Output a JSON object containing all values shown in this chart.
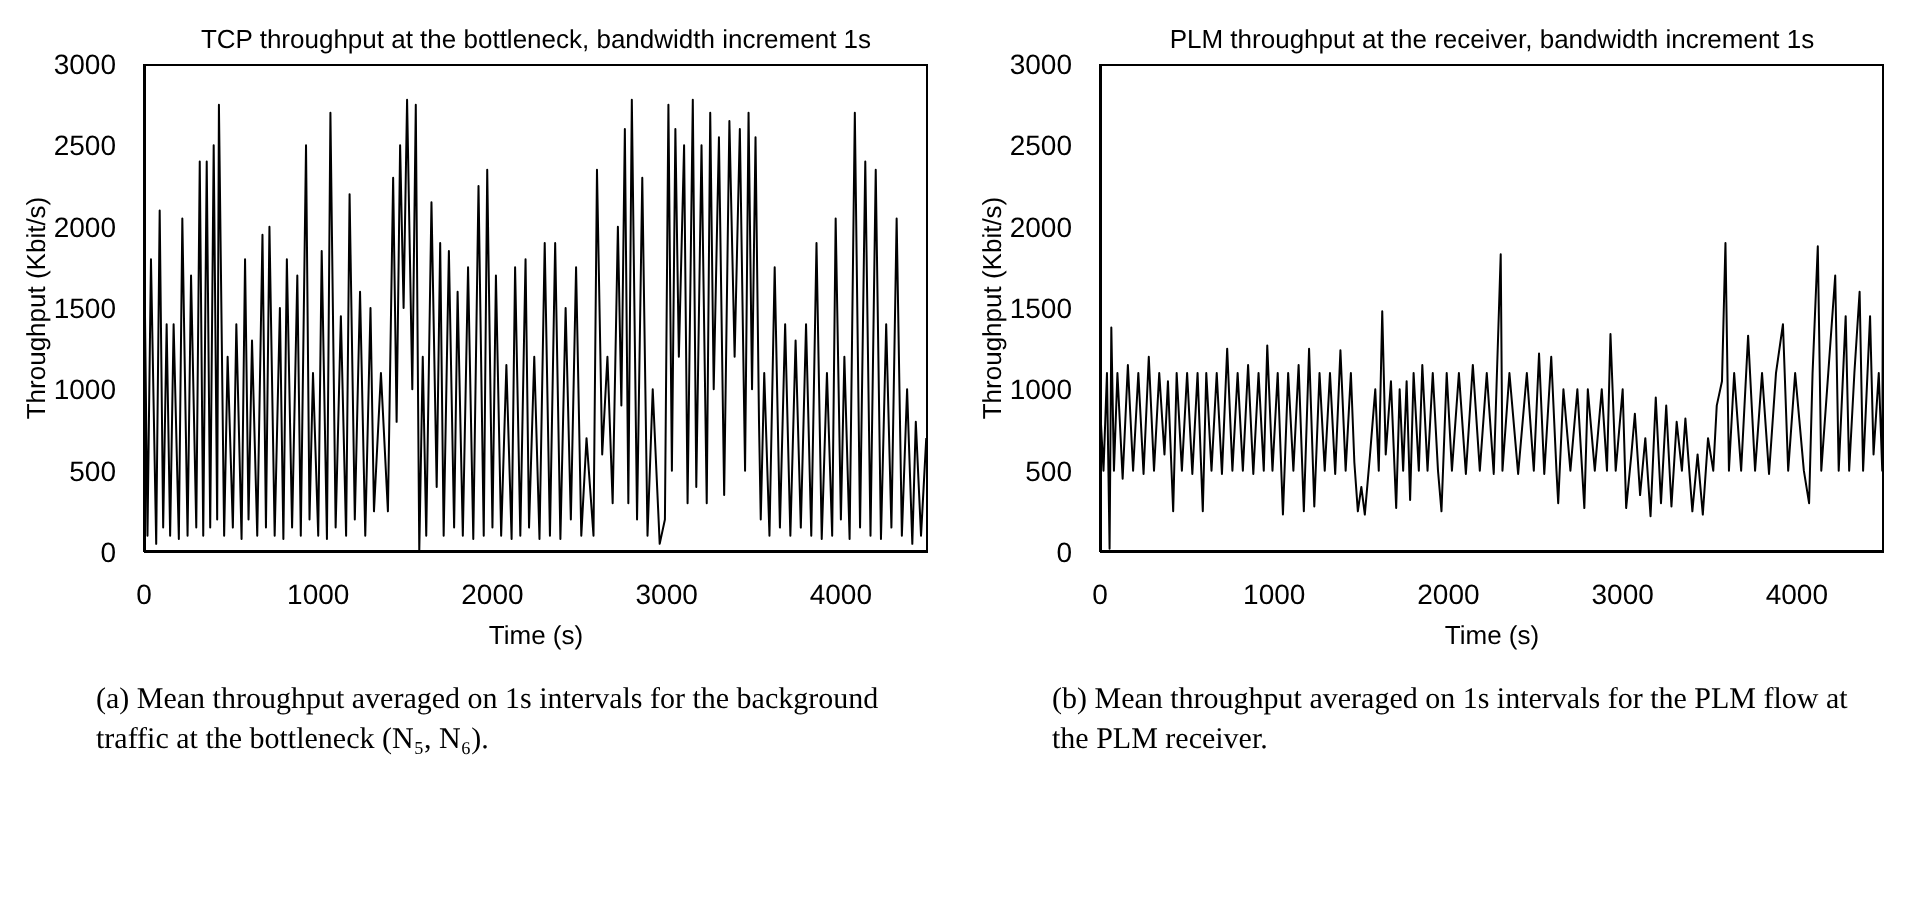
{
  "chart_data": [
    {
      "type": "line",
      "title": "TCP throughput at the bottleneck, bandwidth increment 1s",
      "xlabel": "Time (s)",
      "ylabel": "Throughput (Kbit/s)",
      "xlim": [
        0,
        4500
      ],
      "xticks": [
        0,
        1000,
        2000,
        3000,
        4000
      ],
      "ylim": [
        0,
        3000
      ],
      "yticks": [
        0,
        500,
        1000,
        1500,
        2000,
        2500,
        3000
      ],
      "marker": "none",
      "line_style": "solid",
      "annotations": [
        "(a) Mean throughput averaged on 1s intervals for the background traffic at the bottleneck (N₅, N₆)."
      ],
      "x": [
        0,
        20,
        40,
        70,
        90,
        110,
        130,
        150,
        170,
        200,
        220,
        250,
        270,
        300,
        320,
        340,
        360,
        380,
        400,
        420,
        430,
        460,
        480,
        510,
        530,
        560,
        580,
        600,
        620,
        650,
        680,
        700,
        720,
        750,
        780,
        800,
        820,
        850,
        880,
        900,
        930,
        950,
        970,
        1000,
        1020,
        1050,
        1070,
        1100,
        1130,
        1160,
        1180,
        1210,
        1240,
        1270,
        1300,
        1320,
        1360,
        1400,
        1430,
        1450,
        1470,
        1490,
        1510,
        1540,
        1560,
        1580,
        1600,
        1620,
        1650,
        1680,
        1700,
        1720,
        1750,
        1780,
        1800,
        1830,
        1860,
        1890,
        1920,
        1950,
        1970,
        2000,
        2020,
        2050,
        2080,
        2110,
        2130,
        2160,
        2190,
        2210,
        2240,
        2270,
        2300,
        2330,
        2360,
        2390,
        2420,
        2450,
        2480,
        2510,
        2540,
        2580,
        2600,
        2630,
        2660,
        2690,
        2720,
        2740,
        2760,
        2780,
        2800,
        2830,
        2860,
        2890,
        2920,
        2960,
        2990,
        3010,
        3030,
        3050,
        3070,
        3100,
        3120,
        3150,
        3170,
        3200,
        3230,
        3250,
        3270,
        3300,
        3330,
        3360,
        3390,
        3420,
        3450,
        3470,
        3490,
        3510,
        3530,
        3540,
        3560,
        3590,
        3620,
        3650,
        3680,
        3710,
        3740,
        3770,
        3800,
        3830,
        3860,
        3890,
        3920,
        3950,
        3970,
        4000,
        4020,
        4050,
        4080,
        4110,
        4140,
        4170,
        4200,
        4230,
        4260,
        4290,
        4320,
        4350,
        4380,
        4410,
        4430,
        4460,
        4490
      ],
      "series": [
        {
          "color": "#000000",
          "values": [
            2000,
            100,
            1800,
            50,
            2100,
            150,
            1400,
            100,
            1400,
            80,
            2050,
            100,
            1700,
            150,
            2400,
            100,
            2400,
            150,
            2500,
            200,
            2750,
            100,
            1200,
            150,
            1400,
            80,
            1800,
            200,
            1300,
            100,
            1950,
            150,
            2000,
            100,
            1500,
            80,
            1800,
            150,
            1700,
            100,
            2500,
            200,
            1100,
            100,
            1850,
            80,
            2700,
            150,
            1450,
            100,
            2200,
            200,
            1600,
            100,
            1500,
            250,
            1100,
            250,
            2300,
            800,
            2500,
            1500,
            2780,
            1000,
            2750,
            0,
            1200,
            100,
            2150,
            400,
            1900,
            100,
            1850,
            150,
            1600,
            100,
            1750,
            80,
            2250,
            100,
            2350,
            150,
            1700,
            100,
            1150,
            80,
            1750,
            100,
            1800,
            150,
            1200,
            80,
            1900,
            100,
            1900,
            80,
            1500,
            200,
            1750,
            100,
            700,
            100,
            2350,
            600,
            1200,
            300,
            2000,
            900,
            2600,
            300,
            2780,
            200,
            2300,
            100,
            1000,
            50,
            200,
            2750,
            500,
            2600,
            1200,
            2500,
            300,
            2780,
            400,
            2500,
            300,
            2700,
            1000,
            2550,
            350,
            2650,
            1200,
            2600,
            500,
            2700,
            1000,
            2550,
            800,
            200,
            1100,
            100,
            1750,
            150,
            1400,
            100,
            1300,
            150,
            1400,
            100,
            1900,
            80,
            1100,
            100,
            2050,
            200,
            1200,
            80,
            2700,
            150,
            2400,
            100,
            2350,
            80,
            1400,
            150,
            2050,
            100,
            1000,
            50,
            800,
            100,
            700
          ]
        }
      ]
    },
    {
      "type": "line",
      "title": "PLM throughput at the receiver, bandwidth increment 1s",
      "xlabel": "Time (s)",
      "ylabel": "Throughput (Kbit/s)",
      "xlim": [
        0,
        4500
      ],
      "xticks": [
        0,
        1000,
        2000,
        3000,
        4000
      ],
      "ylim": [
        0,
        3000
      ],
      "yticks": [
        0,
        500,
        1000,
        1500,
        2000,
        2500,
        3000
      ],
      "marker": "none",
      "line_style": "solid",
      "annotations": [
        "(b) Mean throughput averaged on 1s intervals for the PLM flow at the PLM receiver."
      ],
      "x": [
        0,
        20,
        40,
        55,
        65,
        80,
        100,
        130,
        160,
        190,
        220,
        250,
        280,
        310,
        340,
        370,
        390,
        420,
        440,
        470,
        500,
        530,
        560,
        590,
        610,
        640,
        670,
        700,
        730,
        760,
        790,
        820,
        850,
        880,
        910,
        940,
        960,
        990,
        1020,
        1050,
        1080,
        1110,
        1140,
        1170,
        1200,
        1230,
        1260,
        1290,
        1320,
        1350,
        1380,
        1410,
        1440,
        1460,
        1480,
        1500,
        1520,
        1550,
        1580,
        1600,
        1620,
        1640,
        1670,
        1700,
        1720,
        1740,
        1760,
        1780,
        1800,
        1830,
        1850,
        1880,
        1910,
        1940,
        1960,
        1990,
        2020,
        2060,
        2100,
        2140,
        2180,
        2220,
        2260,
        2300,
        2310,
        2350,
        2400,
        2450,
        2490,
        2520,
        2550,
        2590,
        2620,
        2630,
        2660,
        2700,
        2740,
        2780,
        2800,
        2840,
        2880,
        2910,
        2930,
        2960,
        3000,
        3020,
        3050,
        3070,
        3100,
        3130,
        3160,
        3190,
        3220,
        3250,
        3280,
        3310,
        3340,
        3360,
        3400,
        3430,
        3460,
        3490,
        3520,
        3540,
        3570,
        3590,
        3610,
        3640,
        3680,
        3720,
        3760,
        3800,
        3840,
        3880,
        3920,
        3950,
        3990,
        4040,
        4070,
        4090,
        4120,
        4140,
        4180,
        4220,
        4240,
        4280,
        4300,
        4330,
        4360,
        4380,
        4420,
        4440,
        4470,
        4490,
        4495,
        4500
      ],
      "series": [
        {
          "color": "#000000",
          "values": [
            900,
            500,
            1100,
            20,
            1380,
            500,
            1100,
            450,
            1150,
            500,
            1100,
            480,
            1200,
            500,
            1100,
            600,
            1050,
            250,
            1100,
            500,
            1100,
            480,
            1100,
            250,
            1100,
            500,
            1100,
            480,
            1250,
            500,
            1100,
            500,
            1150,
            480,
            1100,
            500,
            1270,
            500,
            1100,
            230,
            1100,
            500,
            1150,
            250,
            1250,
            280,
            1100,
            500,
            1100,
            480,
            1240,
            500,
            1100,
            550,
            250,
            400,
            230,
            600,
            1000,
            500,
            1480,
            600,
            1050,
            270,
            1000,
            500,
            1050,
            320,
            1100,
            500,
            1150,
            500,
            1100,
            500,
            250,
            1100,
            500,
            1100,
            480,
            1150,
            500,
            1100,
            480,
            1830,
            500,
            1100,
            480,
            1100,
            500,
            1220,
            480,
            1200,
            500,
            300,
            1000,
            500,
            1000,
            270,
            1000,
            500,
            1000,
            500,
            1340,
            500,
            1000,
            270,
            600,
            850,
            350,
            700,
            220,
            950,
            300,
            900,
            280,
            800,
            500,
            820,
            250,
            600,
            230,
            700,
            500,
            900,
            1050,
            1900,
            500,
            1100,
            500,
            1330,
            500,
            1100,
            480,
            1100,
            1400,
            500,
            1100,
            500,
            300,
            1100,
            1880,
            500,
            1100,
            1700,
            500,
            1450,
            500,
            1100,
            1600,
            500,
            1450,
            600,
            1100,
            500,
            2100,
            1000
          ]
        }
      ]
    }
  ]
}
